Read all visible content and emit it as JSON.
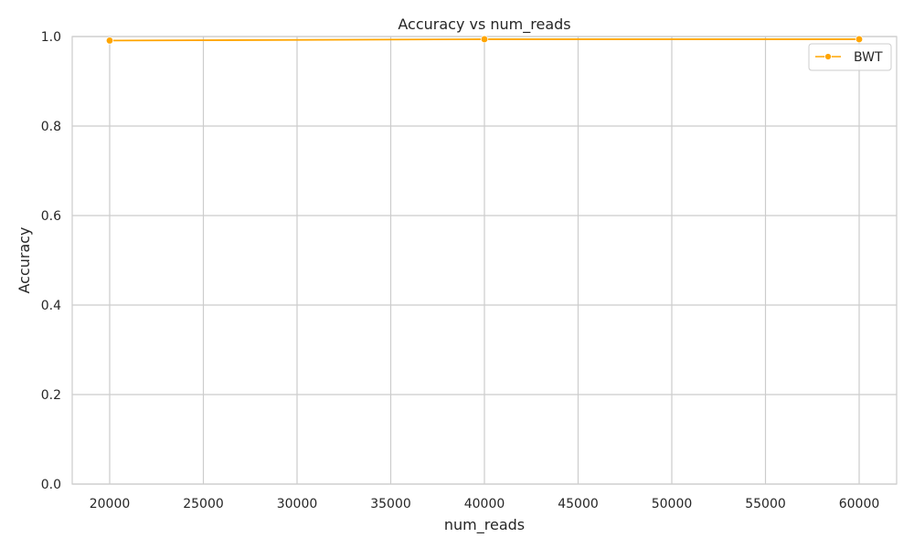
{
  "chart_data": {
    "type": "line",
    "title": "Accuracy vs num_reads",
    "xlabel": "num_reads",
    "ylabel": "Accuracy",
    "x": [
      20000,
      40000,
      60000
    ],
    "series": [
      {
        "name": "BWT",
        "values": [
          0.991,
          0.994,
          0.994
        ],
        "color": "#ffa500",
        "marker": "circle"
      }
    ],
    "xlim": [
      18000,
      62000
    ],
    "ylim": [
      0,
      1
    ],
    "xticks": [
      20000,
      25000,
      30000,
      35000,
      40000,
      45000,
      50000,
      55000,
      60000
    ],
    "yticks": [
      0.0,
      0.2,
      0.4,
      0.6,
      0.8,
      1.0
    ],
    "xtick_labels": [
      "20000",
      "25000",
      "30000",
      "35000",
      "40000",
      "45000",
      "50000",
      "55000",
      "60000"
    ],
    "ytick_labels": [
      "0.0",
      "0.2",
      "0.4",
      "0.6",
      "0.8",
      "1.0"
    ],
    "grid": true,
    "legend_position": "top-right",
    "colors": {
      "grid": "#cccccc",
      "spine": "#cccccc",
      "background": "#ffffff"
    }
  }
}
